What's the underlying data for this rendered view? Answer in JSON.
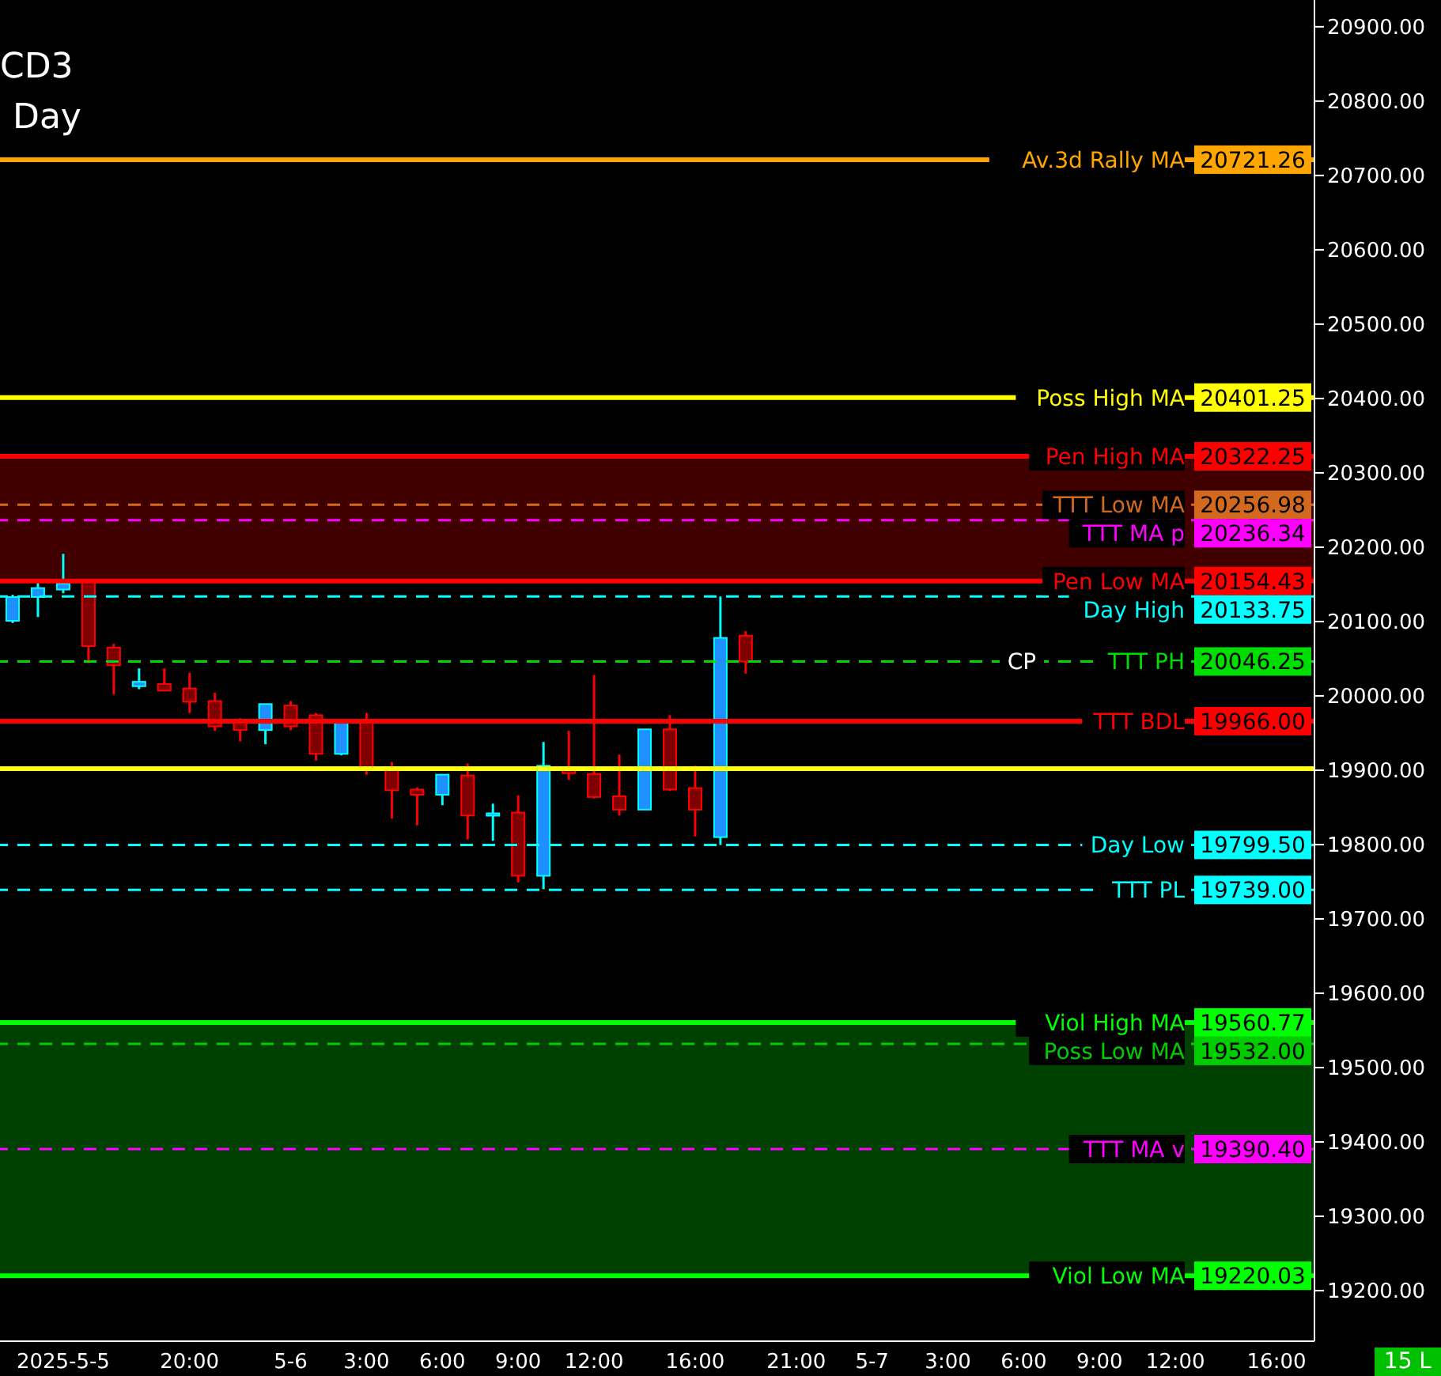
{
  "chart_data": {
    "type": "candlestick",
    "title": "CD3",
    "subtitle": "Day",
    "categories": [
      null,
      null,
      "2025-5-5",
      null,
      null,
      null,
      null,
      "20:00",
      null,
      null,
      null,
      "5-6",
      null,
      null,
      "3:00",
      null,
      null,
      "6:00",
      null,
      null,
      "9:00",
      null,
      null,
      "12:00",
      null,
      null,
      null,
      "16:00",
      null,
      null,
      null,
      "21:00",
      null,
      null,
      "5-7",
      null,
      null,
      "3:00",
      null,
      null,
      "6:00",
      null,
      null,
      "9:00",
      null,
      null,
      "12:00",
      null,
      null,
      null,
      "16:00",
      null
    ],
    "ohlc": [
      [
        20101,
        20136,
        20098,
        20133
      ],
      [
        20133,
        20157,
        20106,
        20145
      ],
      [
        20143,
        20191,
        20138,
        20151
      ],
      [
        20153,
        20155,
        20044,
        20067
      ],
      [
        20065,
        20070,
        20002,
        20041
      ],
      [
        20013,
        20037,
        20009,
        20019
      ],
      [
        20016,
        20037,
        20007,
        20007
      ],
      [
        20010,
        20031,
        19977,
        19992
      ],
      [
        19993,
        20004,
        19953,
        19959
      ],
      [
        19964,
        19970,
        19939,
        19954
      ],
      [
        19954,
        19989,
        19935,
        19989
      ],
      [
        19987,
        19993,
        19954,
        19959
      ],
      [
        19974,
        19977,
        19913,
        19922
      ],
      [
        19922,
        19968,
        19920,
        19968
      ],
      [
        19964,
        19977,
        19894,
        19903
      ],
      [
        19904,
        19911,
        19835,
        19873
      ],
      [
        19874,
        19877,
        19826,
        19867
      ],
      [
        19867,
        19894,
        19853,
        19894
      ],
      [
        19893,
        19909,
        19807,
        19839
      ],
      [
        19842,
        19855,
        19805,
        19842
      ],
      [
        19843,
        19866,
        19749,
        19758
      ],
      [
        19758,
        19938,
        19740,
        19906
      ],
      [
        19904,
        19953,
        19887,
        19896
      ],
      [
        19895,
        20028,
        19862,
        19864
      ],
      [
        19865,
        19921,
        19839,
        19847
      ],
      [
        19847,
        19955,
        19847,
        19955
      ],
      [
        19955,
        19974,
        19872,
        19874
      ],
      [
        19876,
        19906,
        19811,
        19847
      ],
      [
        19810,
        20133.75,
        19799.5,
        20078
      ],
      [
        20081,
        20087,
        20030,
        20046.25
      ],
      null,
      null,
      null,
      null,
      null,
      null,
      null,
      null,
      null,
      null,
      null,
      null,
      null,
      null,
      null,
      null,
      null,
      null,
      null,
      null,
      null,
      null
    ],
    "ylim": [
      19132,
      20936
    ],
    "yticks": [
      {
        "value": 19200,
        "label": "19200.00"
      },
      {
        "value": 19300,
        "label": "19300.00"
      },
      {
        "value": 19400,
        "label": "19400.00"
      },
      {
        "value": 19500,
        "label": "19500.00"
      },
      {
        "value": 19600,
        "label": "19600.00"
      },
      {
        "value": 19700,
        "label": "19700.00"
      },
      {
        "value": 19800,
        "label": "19800.00"
      },
      {
        "value": 19900,
        "label": "19900.00"
      },
      {
        "value": 20000,
        "label": "20000.00"
      },
      {
        "value": 20100,
        "label": "20100.00"
      },
      {
        "value": 20200,
        "label": "20200.00"
      },
      {
        "value": 20300,
        "label": "20300.00"
      },
      {
        "value": 20400,
        "label": "20400.00"
      },
      {
        "value": 20500,
        "label": "20500.00"
      },
      {
        "value": 20600,
        "label": "20600.00"
      },
      {
        "value": 20700,
        "label": "20700.00"
      },
      {
        "value": 20800,
        "label": "20800.00"
      },
      {
        "value": 20900,
        "label": "20900.00"
      }
    ],
    "ref_lines": [
      {
        "axis": "y",
        "value": 20721.26,
        "label": "Av.3d Rally MA",
        "color": "#ffa500",
        "line_style": "solid"
      },
      {
        "axis": "y",
        "value": 20401.25,
        "label": "Poss High MA",
        "color": "#ffff00",
        "line_style": "solid"
      },
      {
        "axis": "y",
        "value": 20322.25,
        "label": "Pen High MA",
        "color": "#ff0000",
        "line_style": "solid"
      },
      {
        "axis": "y",
        "value": 20256.98,
        "label": "TTT Low MA",
        "color": "#d2691e",
        "line_style": "dashed"
      },
      {
        "axis": "y",
        "value": 20236.34,
        "label": "TTT MA p",
        "color": "#ff00ff",
        "line_style": "dashed"
      },
      {
        "axis": "y",
        "value": 20154.43,
        "label": "Pen Low MA",
        "color": "#ff0000",
        "line_style": "solid"
      },
      {
        "axis": "y",
        "value": 20133.75,
        "label": "Day High",
        "color": "#00ffff",
        "line_style": "dashed"
      },
      {
        "axis": "y",
        "value": 20046.25,
        "label": "TTT PH",
        "color": "#00dd00",
        "line_style": "dashed"
      },
      {
        "axis": "y",
        "value": 19966.0,
        "label": "TTT BDL",
        "color": "#ff0000",
        "line_style": "solid"
      },
      {
        "axis": "y",
        "value": 19902,
        "label": null,
        "color": "#ffff00",
        "line_style": "solid"
      },
      {
        "axis": "y",
        "value": 19799.5,
        "label": "Day Low",
        "color": "#00ffff",
        "line_style": "dashed"
      },
      {
        "axis": "y",
        "value": 19739.0,
        "label": "TTT PL",
        "color": "#00ffff",
        "line_style": "dashed"
      },
      {
        "axis": "y",
        "value": 19560.77,
        "label": "Viol High MA",
        "color": "#00ff00",
        "line_style": "solid"
      },
      {
        "axis": "y",
        "value": 19532.0,
        "label": "Poss Low MA",
        "color": "#00cc00",
        "line_style": "dashed"
      },
      {
        "axis": "y",
        "value": 19390.4,
        "label": "TTT MA v",
        "color": "#ff00ff",
        "line_style": "dashed"
      },
      {
        "axis": "y",
        "value": 19220.03,
        "label": "Viol Low MA",
        "color": "#00ff00",
        "line_style": "solid"
      }
    ],
    "bands": [
      {
        "axis": "y",
        "from": 20154.43,
        "to": 20322.25,
        "color": "#400000"
      },
      {
        "axis": "y",
        "from": 19220.03,
        "to": 19560.77,
        "color": "#004000"
      }
    ],
    "annotations": [
      "CP",
      "15 L",
      {
        "text": "20721.26",
        "y": 20721.26
      },
      {
        "text": "20401.25",
        "y": 20401.25
      },
      {
        "text": "20322.25",
        "y": 20322.25
      },
      {
        "text": "20256.98",
        "y": 20256.98
      },
      {
        "text": "20236.34",
        "y": 20236.34
      },
      {
        "text": "20154.43",
        "y": 20154.43
      },
      {
        "text": "20133.75",
        "y": 20133.75
      },
      {
        "text": "20046.25",
        "y": 20046.25
      },
      {
        "text": "19966.00",
        "y": 19966.0
      },
      {
        "text": "19799.50",
        "y": 19799.5
      },
      {
        "text": "19739.00",
        "y": 19739.0
      },
      {
        "text": "19560.77",
        "y": 19560.77
      },
      {
        "text": "19532.00",
        "y": 19532.0
      },
      {
        "text": "19390.40",
        "y": 19390.4
      },
      {
        "text": "19220.03",
        "y": 19220.03
      }
    ],
    "grid": false,
    "legend": false
  }
}
